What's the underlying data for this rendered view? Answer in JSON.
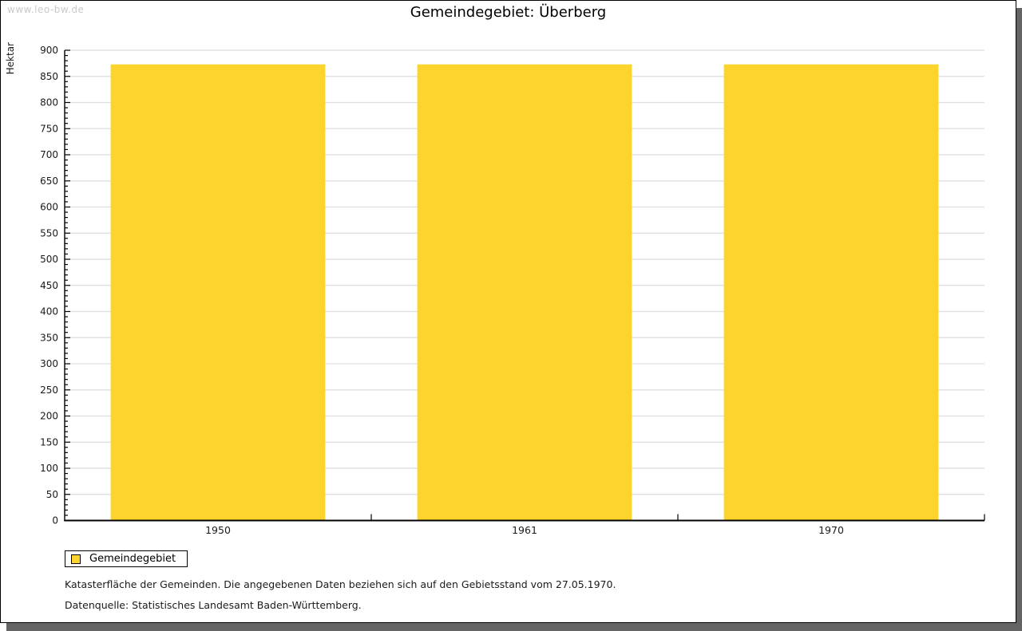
{
  "watermark": "www.leo-bw.de",
  "header": {
    "title": "Gemeindegebiet: Überberg"
  },
  "chart_data": {
    "type": "bar",
    "title": "Gemeindegebiet: Überberg",
    "categories": [
      "1950",
      "1961",
      "1970"
    ],
    "series": [
      {
        "name": "Gemeindegebiet",
        "values": [
          873,
          873,
          873
        ]
      }
    ],
    "xlabel": "",
    "ylabel": "Hektar",
    "ylim": [
      0,
      900
    ],
    "ytick_major_step": 50,
    "ytick_minor_step": 10,
    "grid": true,
    "legend_position": "bottom-left",
    "bar_color": "#FCD42D",
    "grid_color": "#DEDEDE",
    "axis_color": "#000000",
    "tick_label_color": "#1a1a1a"
  },
  "legend": {
    "items": [
      {
        "label": "Gemeindegebiet",
        "color": "#FCD42D"
      }
    ]
  },
  "notes": {
    "line1": "Katasterfläche der Gemeinden. Die angegebenen Daten beziehen sich auf den Gebietsstand vom 27.05.1970.",
    "line2": "Datenquelle: Statistisches Landesamt Baden-Württemberg."
  }
}
